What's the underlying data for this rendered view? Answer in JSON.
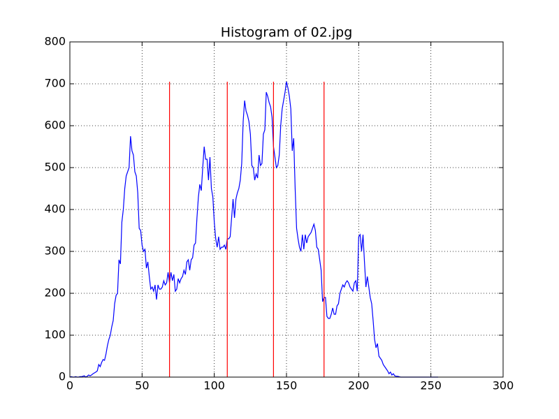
{
  "chart_data": {
    "type": "line",
    "title": "Histogram of 02.jpg",
    "x": [
      0,
      1,
      2,
      3,
      4,
      5,
      6,
      7,
      8,
      9,
      10,
      11,
      12,
      13,
      14,
      15,
      16,
      17,
      18,
      19,
      20,
      21,
      22,
      23,
      24,
      25,
      26,
      27,
      28,
      29,
      30,
      31,
      32,
      33,
      34,
      35,
      36,
      37,
      38,
      39,
      40,
      41,
      42,
      43,
      44,
      45,
      46,
      47,
      48,
      49,
      50,
      51,
      52,
      53,
      54,
      55,
      56,
      57,
      58,
      59,
      60,
      61,
      62,
      63,
      64,
      65,
      66,
      67,
      68,
      69,
      70,
      71,
      72,
      73,
      74,
      75,
      76,
      77,
      78,
      79,
      80,
      81,
      82,
      83,
      84,
      85,
      86,
      87,
      88,
      89,
      90,
      91,
      92,
      93,
      94,
      95,
      96,
      97,
      98,
      99,
      100,
      101,
      102,
      103,
      104,
      105,
      106,
      107,
      108,
      109,
      110,
      111,
      112,
      113,
      114,
      115,
      116,
      117,
      118,
      119,
      120,
      121,
      122,
      123,
      124,
      125,
      126,
      127,
      128,
      129,
      130,
      131,
      132,
      133,
      134,
      135,
      136,
      137,
      138,
      139,
      140,
      141,
      142,
      143,
      144,
      145,
      146,
      147,
      148,
      149,
      150,
      151,
      152,
      153,
      154,
      155,
      156,
      157,
      158,
      159,
      160,
      161,
      162,
      163,
      164,
      165,
      166,
      167,
      168,
      169,
      170,
      171,
      172,
      173,
      174,
      175,
      176,
      177,
      178,
      179,
      180,
      181,
      182,
      183,
      184,
      185,
      186,
      187,
      188,
      189,
      190,
      191,
      192,
      193,
      194,
      195,
      196,
      197,
      198,
      199,
      200,
      201,
      202,
      203,
      204,
      205,
      206,
      207,
      208,
      209,
      210,
      211,
      212,
      213,
      214,
      215,
      216,
      217,
      218,
      219,
      220,
      221,
      222,
      223,
      224,
      225,
      226,
      227,
      228,
      229,
      230,
      231,
      232,
      233,
      234,
      235,
      236,
      237,
      238,
      239,
      240,
      241,
      242,
      243,
      244,
      245,
      246,
      247,
      248,
      249,
      250,
      251,
      252,
      253,
      254,
      255
    ],
    "series": [
      {
        "color": "#0000ff",
        "values": [
          0,
          1,
          0,
          0,
          1,
          0,
          0,
          1,
          1,
          2,
          3,
          0,
          2,
          5,
          3,
          5,
          8,
          10,
          12,
          15,
          30,
          25,
          35,
          42,
          40,
          55,
          75,
          90,
          100,
          120,
          135,
          175,
          195,
          200,
          280,
          270,
          370,
          400,
          450,
          480,
          490,
          500,
          575,
          540,
          530,
          490,
          480,
          440,
          355,
          350,
          315,
          300,
          305,
          260,
          275,
          240,
          210,
          215,
          205,
          220,
          185,
          220,
          210,
          210,
          215,
          230,
          220,
          225,
          250,
          225,
          250,
          230,
          245,
          205,
          210,
          235,
          225,
          235,
          240,
          255,
          245,
          275,
          280,
          255,
          280,
          285,
          315,
          320,
          380,
          430,
          460,
          445,
          500,
          550,
          520,
          520,
          470,
          525,
          450,
          430,
          370,
          330,
          310,
          335,
          305,
          310,
          310,
          315,
          305,
          330,
          330,
          335,
          380,
          425,
          380,
          425,
          440,
          450,
          470,
          510,
          610,
          660,
          635,
          625,
          610,
          580,
          505,
          500,
          470,
          485,
          475,
          530,
          505,
          510,
          580,
          590,
          680,
          670,
          655,
          645,
          620,
          550,
          525,
          500,
          505,
          530,
          600,
          640,
          660,
          680,
          705,
          690,
          670,
          640,
          540,
          570,
          450,
          355,
          330,
          310,
          300,
          340,
          305,
          340,
          320,
          335,
          340,
          345,
          355,
          365,
          350,
          310,
          305,
          280,
          255,
          180,
          190,
          190,
          145,
          140,
          140,
          150,
          165,
          150,
          150,
          170,
          175,
          200,
          210,
          220,
          215,
          225,
          230,
          225,
          215,
          210,
          205,
          225,
          230,
          205,
          335,
          340,
          300,
          340,
          275,
          215,
          240,
          215,
          190,
          175,
          135,
          90,
          70,
          80,
          50,
          45,
          40,
          30,
          25,
          20,
          15,
          8,
          12,
          5,
          8,
          3,
          2,
          2,
          1,
          0,
          0,
          0,
          0,
          0,
          0,
          0,
          0,
          0,
          0,
          0,
          0,
          0,
          0,
          0,
          0,
          0,
          0,
          0,
          0,
          0,
          0,
          0,
          0,
          0,
          0,
          0
        ]
      }
    ],
    "vlines": {
      "x": [
        69,
        109,
        141,
        176
      ],
      "ymin": 0,
      "ymax": 705,
      "color": "#ff0000"
    },
    "xlim": [
      0,
      300
    ],
    "xticks": [
      0,
      50,
      100,
      150,
      200,
      250,
      300
    ],
    "ylim": [
      0,
      800
    ],
    "yticks": [
      0,
      100,
      200,
      300,
      400,
      500,
      600,
      700,
      800
    ],
    "grid": true
  }
}
